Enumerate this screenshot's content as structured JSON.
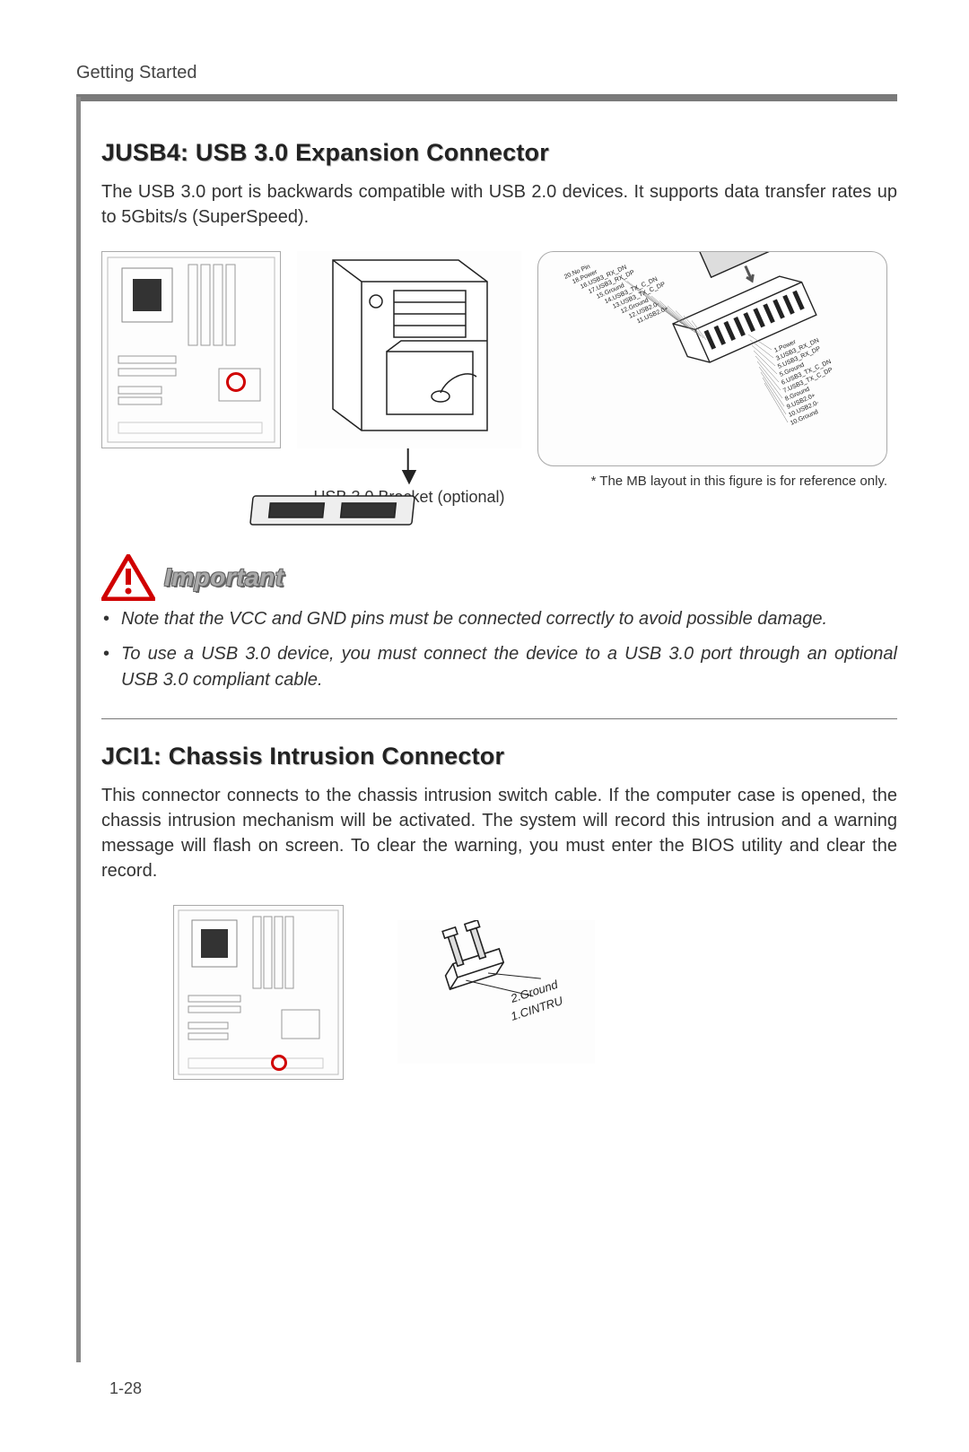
{
  "running_header": "Getting Started",
  "page_number": "1-28",
  "colors": {
    "header_rule": "#7a7a7a",
    "left_rule": "#888888",
    "accent_red": "#d00000",
    "text": "#222222",
    "important_stroke": "#666666",
    "important_fill": "#aaaaaa"
  },
  "section1": {
    "title": "JUSB4: USB 3.0 Expansion Connector",
    "body": "The USB 3.0 port is backwards compatible with USB 2.0 devices. It supports data transfer rates up to 5Gbits/s (SuperSpeed).",
    "figure": {
      "bracket_caption": "USB 3.0 Bracket (optional)",
      "reference_note": "* The MB layout in this figure is for reference only.",
      "connector_pins_left": [
        {
          "n": 20,
          "label": "No Pin"
        },
        {
          "n": 18,
          "label": "Power"
        },
        {
          "n": 16,
          "label": "USB3_RX_DN"
        },
        {
          "n": 17,
          "label": "USB3_RX_DP"
        },
        {
          "n": 15,
          "label": "Ground"
        },
        {
          "n": 14,
          "label": "USB3_TX_C_DN"
        },
        {
          "n": 13,
          "label": "USB3_TX_C_DP"
        },
        {
          "n": 12,
          "label": "Ground"
        },
        {
          "n": 12,
          "label": "USB2.0-"
        },
        {
          "n": 11,
          "label": "USB2.0+"
        }
      ],
      "connector_pins_right": [
        {
          "n": 1,
          "label": "Power"
        },
        {
          "n": 3,
          "label": "USB3_RX_DN"
        },
        {
          "n": 5,
          "label": "USB3_RX_DP"
        },
        {
          "n": 5,
          "label": "Ground"
        },
        {
          "n": 6,
          "label": "USB3_TX_C_DN"
        },
        {
          "n": 7,
          "label": "USB3_TX_C_DP"
        },
        {
          "n": 8,
          "label": "Ground"
        },
        {
          "n": 9,
          "label": "USB2.0+"
        },
        {
          "n": 10,
          "label": "USB2.0-"
        },
        {
          "n": 10,
          "label": "Ground"
        }
      ]
    },
    "important": {
      "label": "Important",
      "notes": [
        "Note that the VCC and GND pins must be connected correctly to avoid possible damage.",
        "To use a USB 3.0 device, you must connect the device to a USB 3.0 port through an optional USB 3.0 compliant cable."
      ]
    }
  },
  "section2": {
    "title": "JCI1: Chassis Intrusion Connector",
    "body": "This connector connects to the chassis intrusion switch cable. If the computer case is opened, the chassis intrusion mechanism will be activated. The system will record this intrusion and a warning message will flash on screen. To clear the warning, you must enter the BIOS utility and clear the record.",
    "figure": {
      "pins": [
        {
          "n": 2,
          "label": "Ground"
        },
        {
          "n": 1,
          "label": "CINTRU"
        }
      ]
    }
  }
}
